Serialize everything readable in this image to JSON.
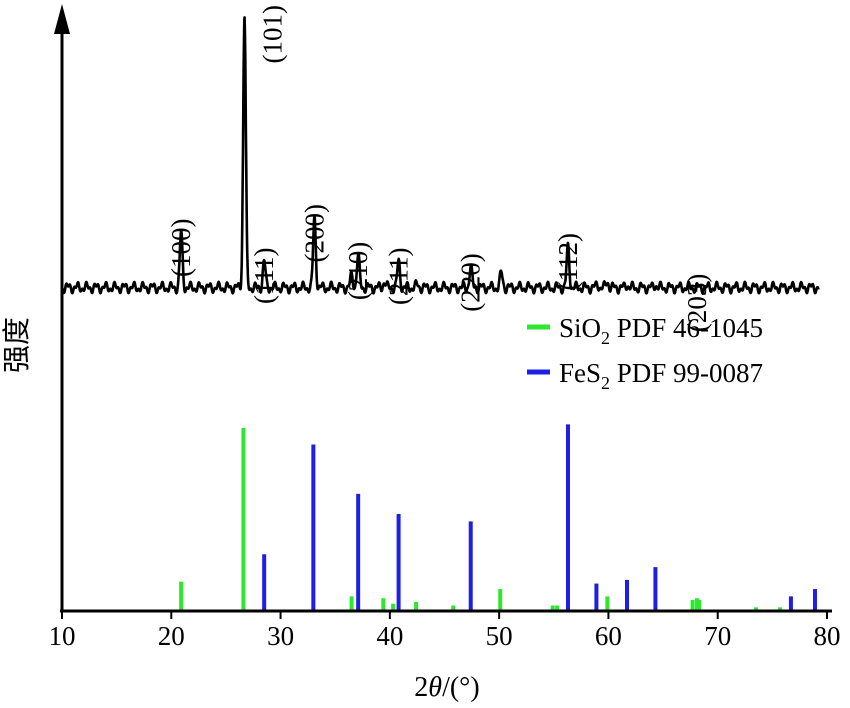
{
  "chart_data": {
    "type": "line",
    "xlabel_prefix": "2",
    "xlabel_symbol": "θ",
    "xlabel_suffix": "/(°)",
    "ylabel": "强度",
    "xlim": [
      10,
      80
    ],
    "xticks": [
      10,
      20,
      30,
      40,
      50,
      60,
      70,
      80
    ],
    "xtick_labels": [
      "10",
      "20",
      "30",
      "40",
      "50",
      "60",
      "70",
      "80"
    ],
    "pattern": {
      "baseline": 0.06,
      "peaks": [
        {
          "x": 20.9,
          "y": 0.25,
          "label": "(100)"
        },
        {
          "x": 26.7,
          "y": 1.0,
          "label": "(101)"
        },
        {
          "x": 28.5,
          "y": 0.15,
          "label": "(111)"
        },
        {
          "x": 33.1,
          "y": 0.3,
          "label": "(200)"
        },
        {
          "x": 36.5,
          "y": 0.1
        },
        {
          "x": 37.1,
          "y": 0.17,
          "label": "(210)"
        },
        {
          "x": 39.5,
          "y": 0.08
        },
        {
          "x": 40.8,
          "y": 0.15,
          "label": "(211)"
        },
        {
          "x": 42.5,
          "y": 0.07
        },
        {
          "x": 45.8,
          "y": 0.05
        },
        {
          "x": 47.4,
          "y": 0.13,
          "label": "(220)"
        },
        {
          "x": 50.2,
          "y": 0.11
        },
        {
          "x": 55.0,
          "y": 0.06
        },
        {
          "x": 56.3,
          "y": 0.2,
          "label": "(112)"
        },
        {
          "x": 59.0,
          "y": 0.07
        },
        {
          "x": 59.9,
          "y": 0.08
        },
        {
          "x": 61.7,
          "y": 0.07
        },
        {
          "x": 64.3,
          "y": 0.07
        },
        {
          "x": 68.1,
          "y": 0.06,
          "label": "(203)"
        },
        {
          "x": 76.8,
          "y": 0.04
        },
        {
          "x": 78.9,
          "y": 0.04
        }
      ]
    },
    "reference_series": [
      {
        "name_main": "SiO",
        "name_sub": "2",
        "name_tail": " PDF 46-1045",
        "color": "#2ee82e",
        "lines": [
          {
            "x": 20.9,
            "y": 16
          },
          {
            "x": 26.6,
            "y": 100
          },
          {
            "x": 36.5,
            "y": 8
          },
          {
            "x": 39.4,
            "y": 7
          },
          {
            "x": 40.3,
            "y": 4
          },
          {
            "x": 42.4,
            "y": 5
          },
          {
            "x": 45.8,
            "y": 3
          },
          {
            "x": 50.1,
            "y": 12
          },
          {
            "x": 54.9,
            "y": 3
          },
          {
            "x": 55.3,
            "y": 3
          },
          {
            "x": 59.9,
            "y": 8
          },
          {
            "x": 67.7,
            "y": 6
          },
          {
            "x": 68.1,
            "y": 7
          },
          {
            "x": 68.3,
            "y": 6
          },
          {
            "x": 73.5,
            "y": 2
          },
          {
            "x": 75.7,
            "y": 2
          }
        ]
      },
      {
        "name_main": "FeS",
        "name_sub": "2",
        "name_tail": " PDF 99-0087",
        "color": "#1e1ee8",
        "lines": [
          {
            "x": 28.5,
            "y": 31
          },
          {
            "x": 33.0,
            "y": 91
          },
          {
            "x": 37.1,
            "y": 64
          },
          {
            "x": 40.8,
            "y": 53
          },
          {
            "x": 47.4,
            "y": 49
          },
          {
            "x": 56.3,
            "y": 102
          },
          {
            "x": 58.9,
            "y": 15
          },
          {
            "x": 61.7,
            "y": 17
          },
          {
            "x": 64.3,
            "y": 24
          },
          {
            "x": 76.7,
            "y": 8
          },
          {
            "x": 78.9,
            "y": 12
          }
        ]
      }
    ]
  }
}
